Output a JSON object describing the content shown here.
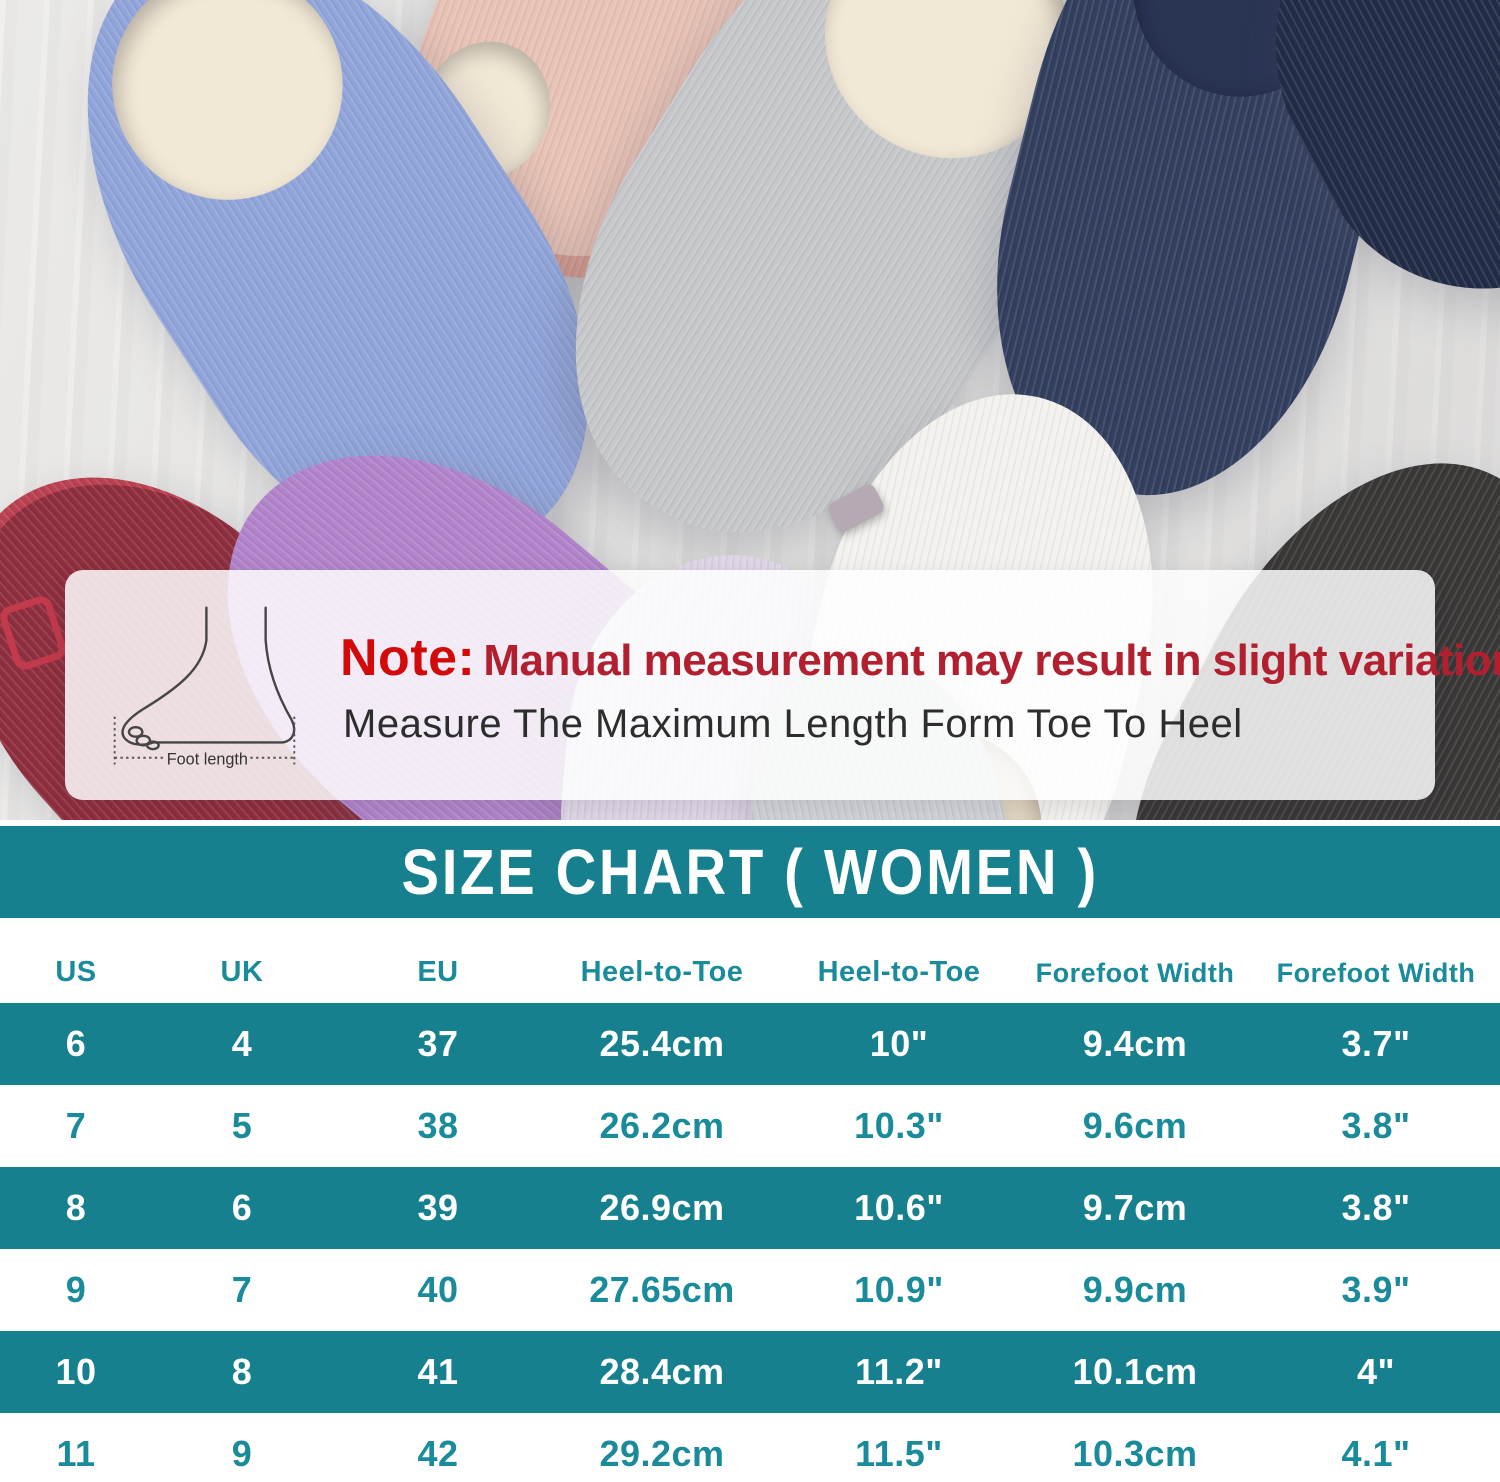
{
  "note": {
    "label": "Note:",
    "text": "Manual measurement may result in slight variations.",
    "subtext": "Measure The Maximum Length Form Toe To Heel",
    "foot_caption": "Foot length"
  },
  "size_chart": {
    "title": "SIZE CHART ( WOMEN )",
    "headers": [
      "US",
      "UK",
      "EU",
      "Heel-to-Toe",
      "Heel-to-Toe",
      "Forefoot Width",
      "Forefoot Width"
    ],
    "rows": [
      [
        "6",
        "4",
        "37",
        "25.4cm",
        "10\"",
        "9.4cm",
        "3.7\""
      ],
      [
        "7",
        "5",
        "38",
        "26.2cm",
        "10.3\"",
        "9.6cm",
        "3.8\""
      ],
      [
        "8",
        "6",
        "39",
        "26.9cm",
        "10.6\"",
        "9.7cm",
        "3.8\""
      ],
      [
        "9",
        "7",
        "40",
        "27.65cm",
        "10.9\"",
        "9.9cm",
        "3.9\""
      ],
      [
        "10",
        "8",
        "41",
        "28.4cm",
        "11.2\"",
        "10.1cm",
        "4\""
      ],
      [
        "11",
        "9",
        "42",
        "29.2cm",
        "11.5\"",
        "10.3cm",
        "4.1\""
      ]
    ]
  },
  "colors": {
    "accent_teal": "#16808E",
    "teal_text": "#1A8B9A",
    "note_label_red": "#D20A0A",
    "note_text_red": "#B2202F"
  }
}
